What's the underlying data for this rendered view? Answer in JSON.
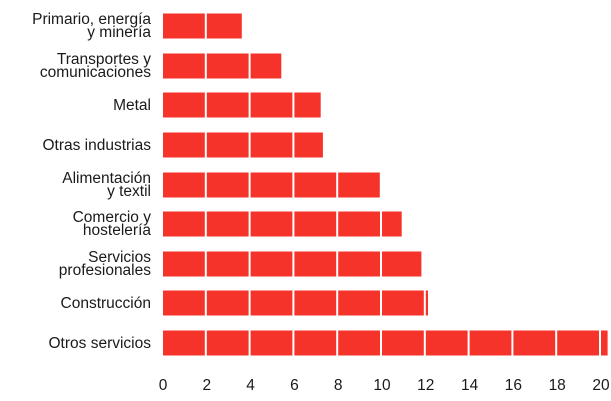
{
  "chart_data": {
    "type": "bar",
    "orientation": "horizontal",
    "categories": [
      [
        "Primario, energía",
        "y minería"
      ],
      [
        "Transportes y",
        "comunicaciones"
      ],
      [
        "Metal"
      ],
      [
        "Otras industrias"
      ],
      [
        "Alimentación",
        "y textil"
      ],
      [
        "Comercio y",
        "hostelería"
      ],
      [
        "Servicios",
        "profesionales"
      ],
      [
        "Construcción"
      ],
      [
        "Otros servicios"
      ]
    ],
    "values": [
      3.6,
      5.4,
      7.2,
      7.3,
      9.9,
      10.9,
      11.8,
      12.1,
      20.3
    ],
    "xticks": [
      "0",
      "2",
      "4",
      "6",
      "8",
      "10",
      "12",
      "14",
      "16",
      "18",
      "20"
    ],
    "xlim": [
      0,
      20
    ],
    "segment": 2,
    "title": "",
    "xlabel": "",
    "ylabel": "",
    "bar_color": "#f5332a",
    "grid": false,
    "legend": "none"
  }
}
